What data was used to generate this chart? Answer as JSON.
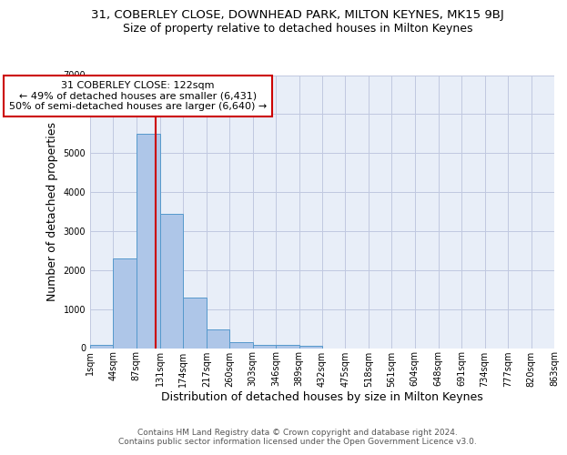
{
  "title": "31, COBERLEY CLOSE, DOWNHEAD PARK, MILTON KEYNES, MK15 9BJ",
  "subtitle": "Size of property relative to detached houses in Milton Keynes",
  "xlabel": "Distribution of detached houses by size in Milton Keynes",
  "ylabel": "Number of detached properties",
  "footer_line1": "Contains HM Land Registry data © Crown copyright and database right 2024.",
  "footer_line2": "Contains public sector information licensed under the Open Government Licence v3.0.",
  "bar_edges": [
    1,
    44,
    87,
    131,
    174,
    217,
    260,
    303,
    346,
    389,
    432,
    475,
    518,
    561,
    604,
    648,
    691,
    734,
    777,
    820,
    863
  ],
  "bar_heights": [
    80,
    2300,
    5500,
    3450,
    1300,
    470,
    160,
    90,
    80,
    50,
    0,
    0,
    0,
    0,
    0,
    0,
    0,
    0,
    0,
    0
  ],
  "bar_color": "#aec6e8",
  "bar_edge_color": "#5599cc",
  "vline_x": 122,
  "vline_color": "#cc0000",
  "annotation_text": "31 COBERLEY CLOSE: 122sqm\n← 49% of detached houses are smaller (6,431)\n50% of semi-detached houses are larger (6,640) →",
  "annotation_box_color": "#cc0000",
  "annotation_text_color": "#000000",
  "annotation_bg": "#ffffff",
  "ylim": [
    0,
    7000
  ],
  "tick_labels": [
    "1sqm",
    "44sqm",
    "87sqm",
    "131sqm",
    "174sqm",
    "217sqm",
    "260sqm",
    "303sqm",
    "346sqm",
    "389sqm",
    "432sqm",
    "475sqm",
    "518sqm",
    "561sqm",
    "604sqm",
    "648sqm",
    "691sqm",
    "734sqm",
    "777sqm",
    "820sqm",
    "863sqm"
  ],
  "bg_color": "#e8eef8",
  "grid_color": "#c0c8e0",
  "title_fontsize": 9.5,
  "subtitle_fontsize": 9,
  "axis_label_fontsize": 9,
  "tick_fontsize": 7,
  "footer_fontsize": 6.5,
  "annotation_fontsize": 8
}
